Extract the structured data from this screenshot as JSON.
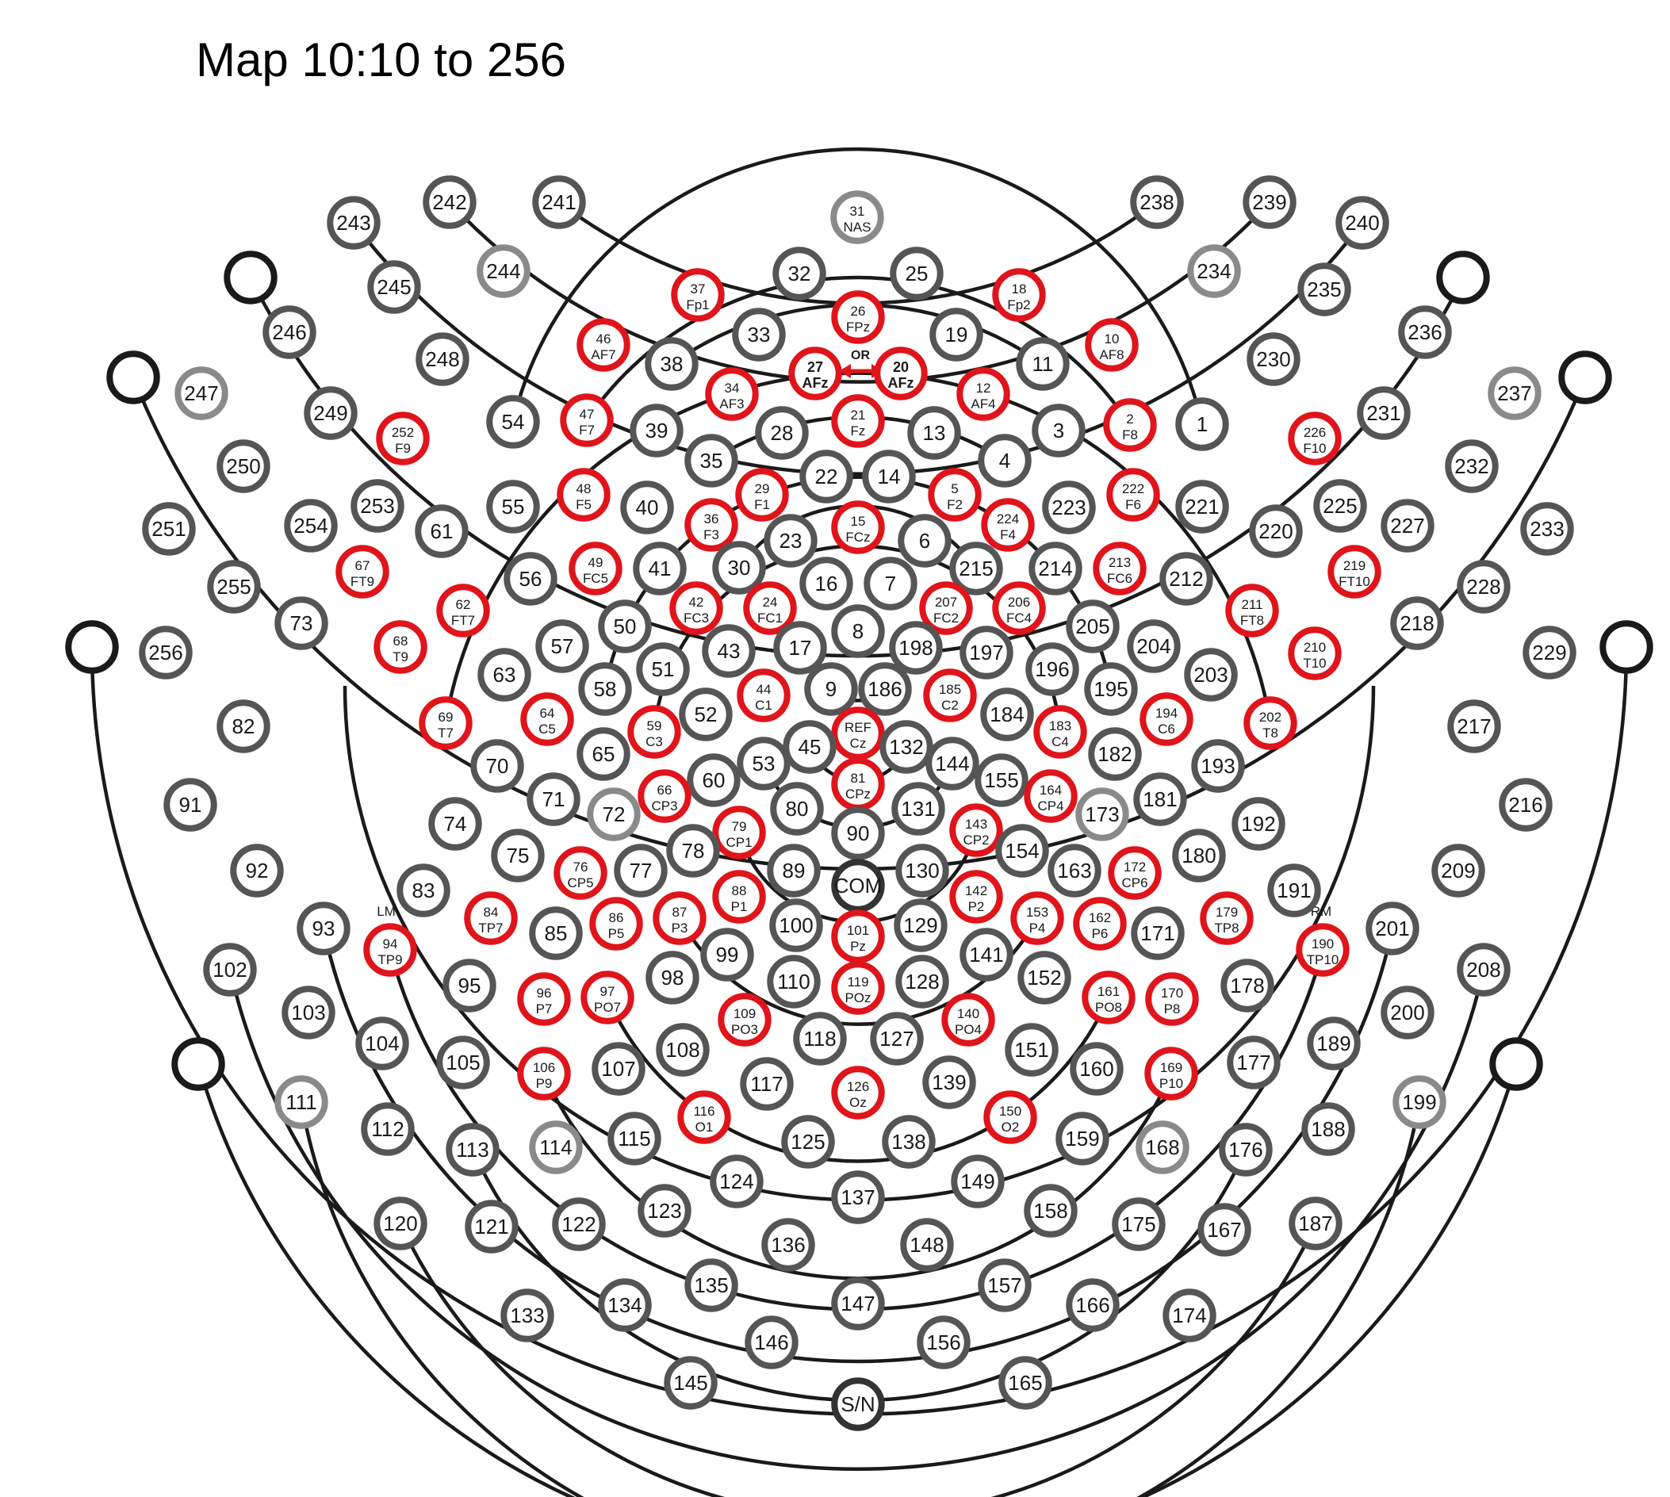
{
  "title": "Map 10:10 to 256",
  "colors": {
    "standard": "#555555",
    "mapped_1010": "#e0141b",
    "outer_light": "#8a8a8a",
    "reference": "#333333",
    "wire": "#1a1a1a"
  },
  "annotations": {
    "or": "OR",
    "lm": "LM",
    "rm": "RM"
  },
  "electrodes": [
    {
      "id": "31",
      "label": "NAS",
      "kind": "outer_light"
    },
    {
      "id": "32"
    },
    {
      "id": "25"
    },
    {
      "id": "37",
      "label": "Fp1",
      "kind": "mapped_1010"
    },
    {
      "id": "18",
      "label": "Fp2",
      "kind": "mapped_1010"
    },
    {
      "id": "26",
      "label": "FPz",
      "kind": "mapped_1010"
    },
    {
      "id": "46",
      "label": "AF7",
      "kind": "mapped_1010"
    },
    {
      "id": "10",
      "label": "AF8",
      "kind": "mapped_1010"
    },
    {
      "id": "33"
    },
    {
      "id": "19"
    },
    {
      "id": "38"
    },
    {
      "id": "11"
    },
    {
      "id": "27",
      "label": "AFz",
      "kind": "mapped_1010"
    },
    {
      "id": "20",
      "label": "AFz",
      "kind": "mapped_1010"
    },
    {
      "id": "34",
      "label": "AF3",
      "kind": "mapped_1010"
    },
    {
      "id": "12",
      "label": "AF4",
      "kind": "mapped_1010"
    },
    {
      "id": "47",
      "label": "F7",
      "kind": "mapped_1010"
    },
    {
      "id": "2",
      "label": "F8",
      "kind": "mapped_1010"
    },
    {
      "id": "54"
    },
    {
      "id": "1"
    },
    {
      "id": "39"
    },
    {
      "id": "3"
    },
    {
      "id": "28"
    },
    {
      "id": "13"
    },
    {
      "id": "21",
      "label": "Fz",
      "kind": "mapped_1010"
    },
    {
      "id": "35"
    },
    {
      "id": "4"
    },
    {
      "id": "22"
    },
    {
      "id": "14"
    },
    {
      "id": "29",
      "label": "F1",
      "kind": "mapped_1010"
    },
    {
      "id": "5",
      "label": "F2",
      "kind": "mapped_1010"
    },
    {
      "id": "48",
      "label": "F5",
      "kind": "mapped_1010"
    },
    {
      "id": "222",
      "label": "F6",
      "kind": "mapped_1010"
    },
    {
      "id": "55"
    },
    {
      "id": "221"
    },
    {
      "id": "40"
    },
    {
      "id": "223"
    },
    {
      "id": "36",
      "label": "F3",
      "kind": "mapped_1010"
    },
    {
      "id": "224",
      "label": "F4",
      "kind": "mapped_1010"
    },
    {
      "id": "23"
    },
    {
      "id": "15",
      "label": "FCz",
      "kind": "mapped_1010"
    },
    {
      "id": "6"
    },
    {
      "id": "41"
    },
    {
      "id": "30"
    },
    {
      "id": "215"
    },
    {
      "id": "214"
    },
    {
      "id": "49",
      "label": "FC5",
      "kind": "mapped_1010"
    },
    {
      "id": "213",
      "label": "FC6",
      "kind": "mapped_1010"
    },
    {
      "id": "56"
    },
    {
      "id": "212"
    },
    {
      "id": "16"
    },
    {
      "id": "7"
    },
    {
      "id": "42",
      "label": "FC3",
      "kind": "mapped_1010"
    },
    {
      "id": "24",
      "label": "FC1",
      "kind": "mapped_1010"
    },
    {
      "id": "207",
      "label": "FC2",
      "kind": "mapped_1010"
    },
    {
      "id": "206",
      "label": "FC4",
      "kind": "mapped_1010"
    },
    {
      "id": "62",
      "label": "FT7",
      "kind": "mapped_1010"
    },
    {
      "id": "211",
      "label": "FT8",
      "kind": "mapped_1010"
    },
    {
      "id": "50"
    },
    {
      "id": "205"
    },
    {
      "id": "8"
    },
    {
      "id": "57"
    },
    {
      "id": "204"
    },
    {
      "id": "43"
    },
    {
      "id": "17"
    },
    {
      "id": "198"
    },
    {
      "id": "197"
    },
    {
      "id": "51"
    },
    {
      "id": "196"
    },
    {
      "id": "63"
    },
    {
      "id": "203"
    },
    {
      "id": "9"
    },
    {
      "id": "186"
    },
    {
      "id": "44",
      "label": "C1",
      "kind": "mapped_1010"
    },
    {
      "id": "185",
      "label": "C2",
      "kind": "mapped_1010"
    },
    {
      "id": "58"
    },
    {
      "id": "195"
    },
    {
      "id": "52"
    },
    {
      "id": "184"
    },
    {
      "id": "64",
      "label": "C5",
      "kind": "mapped_1010"
    },
    {
      "id": "194",
      "label": "C6",
      "kind": "mapped_1010"
    },
    {
      "id": "69",
      "label": "T7",
      "kind": "mapped_1010"
    },
    {
      "id": "202",
      "label": "T8",
      "kind": "mapped_1010"
    },
    {
      "id": "59",
      "label": "C3",
      "kind": "mapped_1010"
    },
    {
      "id": "183",
      "label": "C4",
      "kind": "mapped_1010"
    },
    {
      "id": "REF",
      "label": "Cz",
      "kind": "mapped_1010"
    },
    {
      "id": "45"
    },
    {
      "id": "132"
    },
    {
      "id": "65"
    },
    {
      "id": "182"
    },
    {
      "id": "53"
    },
    {
      "id": "144"
    },
    {
      "id": "70"
    },
    {
      "id": "193"
    },
    {
      "id": "60"
    },
    {
      "id": "155"
    },
    {
      "id": "81",
      "label": "CPz",
      "kind": "mapped_1010"
    },
    {
      "id": "66",
      "label": "CP3",
      "kind": "mapped_1010"
    },
    {
      "id": "164",
      "label": "CP4",
      "kind": "mapped_1010"
    },
    {
      "id": "71"
    },
    {
      "id": "181"
    },
    {
      "id": "72",
      "kind": "outer_light"
    },
    {
      "id": "173",
      "kind": "outer_light"
    },
    {
      "id": "80"
    },
    {
      "id": "131"
    },
    {
      "id": "90"
    },
    {
      "id": "79",
      "label": "CP1",
      "kind": "mapped_1010"
    },
    {
      "id": "143",
      "label": "CP2",
      "kind": "mapped_1010"
    },
    {
      "id": "74"
    },
    {
      "id": "192"
    },
    {
      "id": "78"
    },
    {
      "id": "154"
    },
    {
      "id": "75"
    },
    {
      "id": "180"
    },
    {
      "id": "76",
      "label": "CP5",
      "kind": "mapped_1010"
    },
    {
      "id": "172",
      "label": "CP6",
      "kind": "mapped_1010"
    },
    {
      "id": "77"
    },
    {
      "id": "163"
    },
    {
      "id": "89"
    },
    {
      "id": "130"
    },
    {
      "id": "COM",
      "kind": "reference"
    },
    {
      "id": "88",
      "label": "P1",
      "kind": "mapped_1010"
    },
    {
      "id": "142",
      "label": "P2",
      "kind": "mapped_1010"
    },
    {
      "id": "84",
      "label": "TP7",
      "kind": "mapped_1010"
    },
    {
      "id": "179",
      "label": "TP8",
      "kind": "mapped_1010"
    },
    {
      "id": "87",
      "label": "P3",
      "kind": "mapped_1010"
    },
    {
      "id": "153",
      "label": "P4",
      "kind": "mapped_1010"
    },
    {
      "id": "86",
      "label": "P5",
      "kind": "mapped_1010"
    },
    {
      "id": "162",
      "label": "P6",
      "kind": "mapped_1010"
    },
    {
      "id": "100"
    },
    {
      "id": "129"
    },
    {
      "id": "101",
      "label": "Pz",
      "kind": "mapped_1010"
    },
    {
      "id": "85"
    },
    {
      "id": "171"
    },
    {
      "id": "99"
    },
    {
      "id": "141"
    },
    {
      "id": "94",
      "label": "TP9",
      "kind": "mapped_1010"
    },
    {
      "id": "190",
      "label": "TP10",
      "kind": "mapped_1010"
    },
    {
      "id": "95"
    },
    {
      "id": "178"
    },
    {
      "id": "98"
    },
    {
      "id": "152"
    },
    {
      "id": "110"
    },
    {
      "id": "128"
    },
    {
      "id": "119",
      "label": "POz",
      "kind": "mapped_1010"
    },
    {
      "id": "96",
      "label": "P7",
      "kind": "mapped_1010"
    },
    {
      "id": "170",
      "label": "P8",
      "kind": "mapped_1010"
    },
    {
      "id": "97",
      "label": "PO7",
      "kind": "mapped_1010"
    },
    {
      "id": "161",
      "label": "PO8",
      "kind": "mapped_1010"
    },
    {
      "id": "109",
      "label": "PO3",
      "kind": "mapped_1010"
    },
    {
      "id": "140",
      "label": "PO4",
      "kind": "mapped_1010"
    },
    {
      "id": "118"
    },
    {
      "id": "127"
    },
    {
      "id": "108"
    },
    {
      "id": "151"
    },
    {
      "id": "104"
    },
    {
      "id": "189"
    },
    {
      "id": "105"
    },
    {
      "id": "177"
    },
    {
      "id": "106",
      "label": "P9",
      "kind": "mapped_1010"
    },
    {
      "id": "169",
      "label": "P10",
      "kind": "mapped_1010"
    },
    {
      "id": "107"
    },
    {
      "id": "160"
    },
    {
      "id": "117"
    },
    {
      "id": "139"
    },
    {
      "id": "126",
      "label": "Oz",
      "kind": "mapped_1010"
    },
    {
      "id": "116",
      "label": "O1",
      "kind": "mapped_1010"
    },
    {
      "id": "150",
      "label": "O2",
      "kind": "mapped_1010"
    },
    {
      "id": "111",
      "kind": "outer_light"
    },
    {
      "id": "199",
      "kind": "outer_light"
    },
    {
      "id": "112"
    },
    {
      "id": "188"
    },
    {
      "id": "113"
    },
    {
      "id": "176"
    },
    {
      "id": "114",
      "kind": "outer_light"
    },
    {
      "id": "168",
      "kind": "outer_light"
    },
    {
      "id": "115"
    },
    {
      "id": "159"
    },
    {
      "id": "125"
    },
    {
      "id": "138"
    },
    {
      "id": "124"
    },
    {
      "id": "149"
    },
    {
      "id": "137"
    },
    {
      "id": "120"
    },
    {
      "id": "187"
    },
    {
      "id": "121"
    },
    {
      "id": "167"
    },
    {
      "id": "122"
    },
    {
      "id": "175"
    },
    {
      "id": "123"
    },
    {
      "id": "158"
    },
    {
      "id": "136"
    },
    {
      "id": "148"
    },
    {
      "id": "135"
    },
    {
      "id": "157"
    },
    {
      "id": "134"
    },
    {
      "id": "166"
    },
    {
      "id": "147"
    },
    {
      "id": "133"
    },
    {
      "id": "174"
    },
    {
      "id": "146"
    },
    {
      "id": "156"
    },
    {
      "id": "145"
    },
    {
      "id": "165"
    },
    {
      "id": "S/N",
      "kind": "reference"
    },
    {
      "id": "83"
    },
    {
      "id": "191"
    },
    {
      "id": "93"
    },
    {
      "id": "201"
    },
    {
      "id": "102"
    },
    {
      "id": "208"
    },
    {
      "id": "103"
    },
    {
      "id": "200"
    },
    {
      "id": "92"
    },
    {
      "id": "209"
    },
    {
      "id": "91"
    },
    {
      "id": "216"
    },
    {
      "id": "82"
    },
    {
      "id": "217"
    },
    {
      "id": "256"
    },
    {
      "id": "229"
    },
    {
      "id": "255"
    },
    {
      "id": "228"
    },
    {
      "id": "251"
    },
    {
      "id": "233"
    },
    {
      "id": "250"
    },
    {
      "id": "232"
    },
    {
      "id": "247",
      "kind": "outer_light"
    },
    {
      "id": "237",
      "kind": "outer_light"
    },
    {
      "id": "246"
    },
    {
      "id": "236"
    },
    {
      "id": "243"
    },
    {
      "id": "240"
    },
    {
      "id": "245"
    },
    {
      "id": "235"
    },
    {
      "id": "242"
    },
    {
      "id": "239"
    },
    {
      "id": "249"
    },
    {
      "id": "231"
    },
    {
      "id": "254"
    },
    {
      "id": "227"
    },
    {
      "id": "73"
    },
    {
      "id": "218"
    },
    {
      "id": "244",
      "kind": "outer_light"
    },
    {
      "id": "234",
      "kind": "outer_light"
    },
    {
      "id": "241"
    },
    {
      "id": "238"
    },
    {
      "id": "248"
    },
    {
      "id": "230"
    },
    {
      "id": "252",
      "label": "F9",
      "kind": "mapped_1010"
    },
    {
      "id": "226",
      "label": "F10",
      "kind": "mapped_1010"
    },
    {
      "id": "253"
    },
    {
      "id": "225"
    },
    {
      "id": "67",
      "label": "FT9",
      "kind": "mapped_1010"
    },
    {
      "id": "219",
      "label": "FT10",
      "kind": "mapped_1010"
    },
    {
      "id": "68",
      "label": "T9",
      "kind": "mapped_1010"
    },
    {
      "id": "210",
      "label": "T10",
      "kind": "mapped_1010"
    },
    {
      "id": "61"
    },
    {
      "id": "220"
    },
    {
      "id": "",
      "kind": "empty"
    },
    {
      "id": "",
      "kind": "empty"
    },
    {
      "id": "",
      "kind": "empty"
    },
    {
      "id": "",
      "kind": "empty"
    },
    {
      "id": "",
      "kind": "empty"
    },
    {
      "id": "",
      "kind": "empty"
    },
    {
      "id": "",
      "kind": "empty"
    },
    {
      "id": "",
      "kind": "empty"
    }
  ]
}
